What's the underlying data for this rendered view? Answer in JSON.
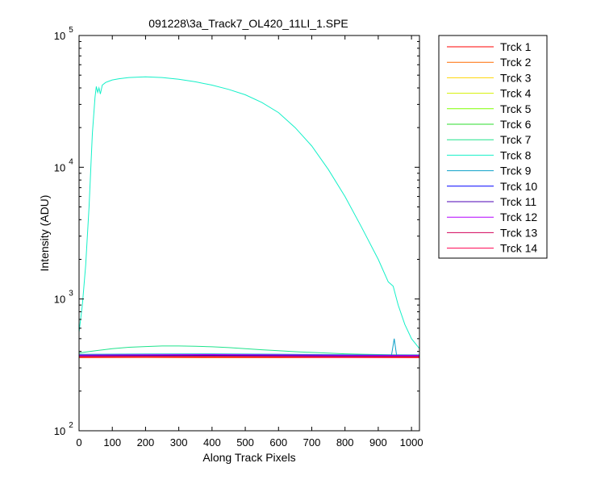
{
  "chart_data": {
    "type": "line",
    "title": "091228\\3a_Track7_OL420_11LI_1.SPE",
    "xlabel": "Along Track Pixels",
    "ylabel": "Intensity (ADU)",
    "xlim": [
      0,
      1024
    ],
    "ylim": [
      100,
      100000
    ],
    "y_scale": "log",
    "grid": false,
    "legend_position": "outside-right",
    "x_ticks": [
      "0",
      "100",
      "200",
      "300",
      "400",
      "500",
      "600",
      "700",
      "800",
      "900",
      "1000"
    ],
    "y_ticks": [
      {
        "value": 100,
        "base": "10",
        "exp": "2"
      },
      {
        "value": 1000,
        "base": "10",
        "exp": "3"
      },
      {
        "value": 10000,
        "base": "10",
        "exp": "4"
      },
      {
        "value": 100000,
        "base": "10",
        "exp": "5"
      }
    ],
    "series": [
      {
        "name": "Trck 1",
        "color": "#ff0000",
        "points": [
          [
            0,
            365
          ],
          [
            200,
            366
          ],
          [
            400,
            364
          ],
          [
            600,
            365
          ],
          [
            800,
            364
          ],
          [
            1024,
            365
          ]
        ]
      },
      {
        "name": "Trck 2",
        "color": "#ff6a00",
        "points": [
          [
            0,
            358
          ],
          [
            200,
            359
          ],
          [
            400,
            358
          ],
          [
            600,
            358
          ],
          [
            800,
            359
          ],
          [
            1024,
            358
          ]
        ]
      },
      {
        "name": "Trck 3",
        "color": "#ffd400",
        "points": [
          [
            0,
            362
          ],
          [
            200,
            363
          ],
          [
            400,
            362
          ],
          [
            600,
            363
          ],
          [
            800,
            362
          ],
          [
            1024,
            362
          ]
        ]
      },
      {
        "name": "Trck 4",
        "color": "#d4f000",
        "points": [
          [
            0,
            366
          ],
          [
            200,
            367
          ],
          [
            400,
            366
          ],
          [
            600,
            366
          ],
          [
            800,
            366
          ],
          [
            1024,
            366
          ]
        ]
      },
      {
        "name": "Trck 5",
        "color": "#7fff00",
        "points": [
          [
            0,
            369
          ],
          [
            200,
            370
          ],
          [
            400,
            369
          ],
          [
            600,
            369
          ],
          [
            800,
            368
          ],
          [
            1024,
            369
          ]
        ]
      },
      {
        "name": "Trck 6",
        "color": "#2bdc2b",
        "points": [
          [
            0,
            372
          ],
          [
            200,
            373
          ],
          [
            400,
            372
          ],
          [
            600,
            372
          ],
          [
            800,
            371
          ],
          [
            1024,
            371
          ]
        ]
      },
      {
        "name": "Trck 7",
        "color": "#1ee38c",
        "points": [
          [
            0,
            390
          ],
          [
            50,
            405
          ],
          [
            100,
            420
          ],
          [
            150,
            430
          ],
          [
            200,
            436
          ],
          [
            250,
            440
          ],
          [
            300,
            440
          ],
          [
            350,
            438
          ],
          [
            400,
            434
          ],
          [
            450,
            428
          ],
          [
            500,
            420
          ],
          [
            550,
            412
          ],
          [
            600,
            405
          ],
          [
            650,
            398
          ],
          [
            700,
            393
          ],
          [
            750,
            388
          ],
          [
            800,
            384
          ],
          [
            850,
            381
          ],
          [
            900,
            379
          ],
          [
            940,
            378
          ],
          [
            1024,
            377
          ]
        ]
      },
      {
        "name": "Trck 8",
        "color": "#14f0c8",
        "points": [
          [
            0,
            560
          ],
          [
            10,
            900
          ],
          [
            20,
            1800
          ],
          [
            30,
            5000
          ],
          [
            40,
            18000
          ],
          [
            48,
            34000
          ],
          [
            52,
            41000
          ],
          [
            56,
            37000
          ],
          [
            60,
            40000
          ],
          [
            64,
            36000
          ],
          [
            70,
            42000
          ],
          [
            80,
            44000
          ],
          [
            90,
            45000
          ],
          [
            100,
            46000
          ],
          [
            120,
            47000
          ],
          [
            150,
            48000
          ],
          [
            200,
            48500
          ],
          [
            250,
            48000
          ],
          [
            300,
            46500
          ],
          [
            350,
            44500
          ],
          [
            400,
            42000
          ],
          [
            450,
            39000
          ],
          [
            500,
            35500
          ],
          [
            550,
            31000
          ],
          [
            600,
            26000
          ],
          [
            650,
            20000
          ],
          [
            700,
            14500
          ],
          [
            750,
            9600
          ],
          [
            800,
            6000
          ],
          [
            850,
            3500
          ],
          [
            900,
            2000
          ],
          [
            930,
            1350
          ],
          [
            945,
            1250
          ],
          [
            960,
            900
          ],
          [
            980,
            640
          ],
          [
            1000,
            500
          ],
          [
            1024,
            420
          ]
        ]
      },
      {
        "name": "Trck 9",
        "color": "#0ca0c8",
        "points": [
          [
            0,
            380
          ],
          [
            200,
            382
          ],
          [
            400,
            383
          ],
          [
            600,
            381
          ],
          [
            800,
            378
          ],
          [
            940,
            376
          ],
          [
            948,
            500
          ],
          [
            955,
            376
          ],
          [
            1024,
            376
          ]
        ]
      },
      {
        "name": "Trck 10",
        "color": "#0000ff",
        "points": [
          [
            0,
            374
          ],
          [
            200,
            375
          ],
          [
            300,
            377
          ],
          [
            400,
            376
          ],
          [
            600,
            374
          ],
          [
            800,
            372
          ],
          [
            1024,
            372
          ]
        ]
      },
      {
        "name": "Trck 11",
        "color": "#4b00b4",
        "points": [
          [
            0,
            370
          ],
          [
            200,
            372
          ],
          [
            400,
            373
          ],
          [
            600,
            371
          ],
          [
            800,
            369
          ],
          [
            1024,
            368
          ]
        ]
      },
      {
        "name": "Trck 12",
        "color": "#b400ff",
        "points": [
          [
            0,
            376
          ],
          [
            200,
            378
          ],
          [
            400,
            379
          ],
          [
            600,
            377
          ],
          [
            800,
            375
          ],
          [
            1024,
            374
          ]
        ]
      },
      {
        "name": "Trck 13",
        "color": "#d2005a",
        "points": [
          [
            0,
            367
          ],
          [
            200,
            368
          ],
          [
            400,
            368
          ],
          [
            600,
            367
          ],
          [
            800,
            366
          ],
          [
            1024,
            366
          ]
        ]
      },
      {
        "name": "Trck 14",
        "color": "#ff0050",
        "points": [
          [
            0,
            361
          ],
          [
            200,
            362
          ],
          [
            400,
            362
          ],
          [
            600,
            361
          ],
          [
            800,
            360
          ],
          [
            1024,
            360
          ]
        ]
      }
    ]
  }
}
